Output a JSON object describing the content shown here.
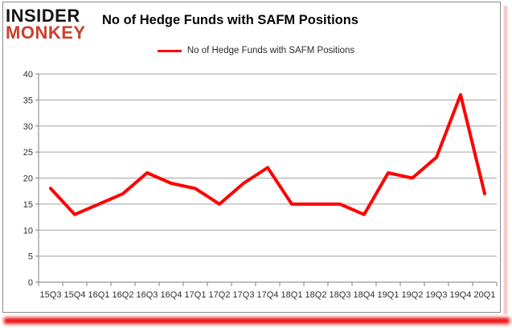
{
  "brand": {
    "line1": "INSIDER",
    "line2": "MONKEY",
    "line1_color": "#141414",
    "line2_color": "#c8402e"
  },
  "header": {
    "title": "No of Hedge Funds with SAFM Positions"
  },
  "legend": {
    "label": "No of Hedge Funds with SAFM Positions",
    "line_color": "#ff0000"
  },
  "chart_data": {
    "type": "line",
    "title": "No of Hedge Funds with SAFM Positions",
    "categories": [
      "15Q3",
      "15Q4",
      "16Q1",
      "16Q2",
      "16Q3",
      "16Q4",
      "17Q1",
      "17Q2",
      "17Q3",
      "17Q4",
      "18Q1",
      "18Q2",
      "18Q3",
      "18Q4",
      "19Q1",
      "19Q2",
      "19Q3",
      "19Q4",
      "20Q1"
    ],
    "series": [
      {
        "name": "No of Hedge Funds with SAFM Positions",
        "color": "#ff0000",
        "values": [
          18,
          13,
          15,
          17,
          21,
          19,
          18,
          15,
          19,
          22,
          15,
          15,
          15,
          13,
          21,
          20,
          24,
          36,
          17
        ]
      }
    ],
    "xlabel": "",
    "ylabel": "",
    "ylim": [
      0,
      40
    ],
    "ytick_interval": 5,
    "y_tick_labels": [
      "0",
      "5",
      "10",
      "15",
      "20",
      "25",
      "30",
      "35",
      "40"
    ],
    "grid": true,
    "legend_position": "top",
    "gridline_color": "#a3a3a3",
    "axis_color": "#7f7f7f",
    "tick_label_color": "#2e2e2e"
  }
}
